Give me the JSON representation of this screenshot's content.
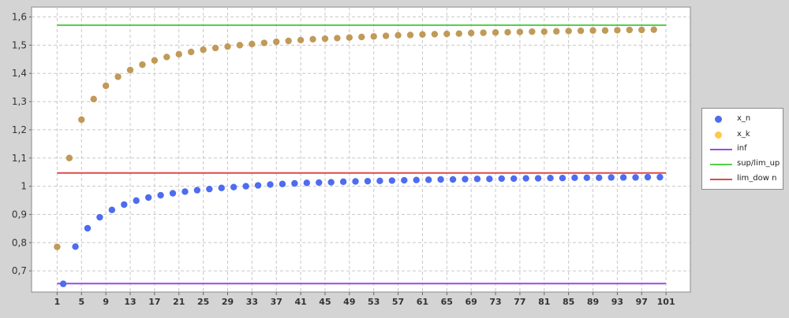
{
  "chart_data": {
    "type": "scatter",
    "x_ticks": [
      "1",
      "5",
      "9",
      "13",
      "17",
      "21",
      "25",
      "29",
      "33",
      "37",
      "41",
      "45",
      "49",
      "53",
      "57",
      "61",
      "65",
      "69",
      "73",
      "77",
      "81",
      "85",
      "89",
      "93",
      "97",
      "101"
    ],
    "y_ticks": [
      "0,7",
      "0,8",
      "0,9",
      "1",
      "1,1",
      "1,2",
      "1,3",
      "1,4",
      "1,5",
      "1,6"
    ],
    "xlim": [
      -3.2,
      105
    ],
    "ylim": [
      0.625,
      1.635
    ],
    "grid": true,
    "legend_position": "right",
    "series": [
      {
        "name": "x_n",
        "kind": "points",
        "color": "#4d6cf0",
        "x": [
          2,
          4,
          6,
          8,
          10,
          12,
          14,
          16,
          18,
          20,
          22,
          24,
          26,
          28,
          30,
          32,
          34,
          36,
          38,
          40,
          42,
          44,
          46,
          48,
          50,
          52,
          54,
          56,
          58,
          60,
          62,
          64,
          66,
          68,
          70,
          72,
          74,
          76,
          78,
          80,
          82,
          84,
          86,
          88,
          90,
          92,
          94,
          96,
          98,
          100
        ],
        "y": [
          0.654,
          0.786,
          0.851,
          0.89,
          0.916,
          0.935,
          0.949,
          0.96,
          0.968,
          0.975,
          0.981,
          0.986,
          0.99,
          0.994,
          0.997,
          1.0,
          1.003,
          1.006,
          1.008,
          1.01,
          1.012,
          1.013,
          1.014,
          1.016,
          1.017,
          1.018,
          1.019,
          1.02,
          1.021,
          1.022,
          1.023,
          1.024,
          1.024,
          1.025,
          1.026,
          1.026,
          1.027,
          1.027,
          1.028,
          1.028,
          1.029,
          1.029,
          1.03,
          1.03,
          1.03,
          1.031,
          1.031,
          1.031,
          1.032,
          1.032
        ]
      },
      {
        "name": "x_k",
        "kind": "points",
        "color": "#c19a58",
        "x": [
          1,
          3,
          5,
          7,
          9,
          11,
          13,
          15,
          17,
          19,
          21,
          23,
          25,
          27,
          29,
          31,
          33,
          35,
          37,
          39,
          41,
          43,
          45,
          47,
          49,
          51,
          53,
          55,
          57,
          59,
          61,
          63,
          65,
          67,
          69,
          71,
          73,
          75,
          77,
          79,
          81,
          83,
          85,
          87,
          89,
          91,
          93,
          95,
          97,
          99
        ],
        "y": [
          0.785,
          1.1,
          1.236,
          1.309,
          1.356,
          1.388,
          1.412,
          1.431,
          1.446,
          1.458,
          1.468,
          1.476,
          1.484,
          1.49,
          1.495,
          1.5,
          1.504,
          1.508,
          1.512,
          1.515,
          1.518,
          1.521,
          1.523,
          1.525,
          1.527,
          1.529,
          1.531,
          1.533,
          1.535,
          1.536,
          1.538,
          1.539,
          1.54,
          1.541,
          1.543,
          1.544,
          1.545,
          1.546,
          1.547,
          1.548,
          1.548,
          1.549,
          1.55,
          1.551,
          1.552,
          1.552,
          1.553,
          1.554,
          1.554,
          1.555
        ]
      },
      {
        "name": "inf",
        "kind": "hline",
        "color": "#9a4fe0",
        "x": [
          1,
          101
        ],
        "y": [
          0.655,
          0.655
        ]
      },
      {
        "name": "sup/lim_up",
        "kind": "hline",
        "color": "#55d04a",
        "x": [
          1,
          101
        ],
        "y": [
          1.571,
          1.571
        ]
      },
      {
        "name": "lim_dow n",
        "kind": "hline",
        "color": "#e04848",
        "x": [
          1,
          101
        ],
        "y": [
          1.047,
          1.047
        ]
      }
    ],
    "legend_colors": {
      "x_n": "#4d6cf0",
      "x_k": "#ffc84a",
      "inf": "#9a4fe0",
      "sup/lim_up": "#55d04a",
      "lim_dow n": "#e04848"
    }
  }
}
